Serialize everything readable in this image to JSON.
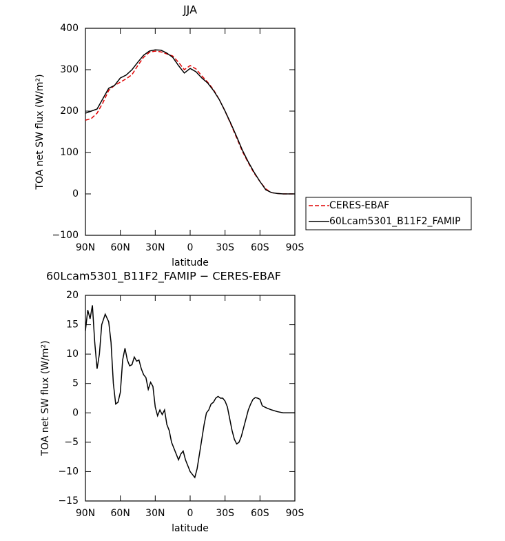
{
  "chart_data": [
    {
      "type": "line",
      "title": "JJA",
      "xlabel": "latitude",
      "ylabel": "TOA net SW flux (W/m²)",
      "x": [
        90,
        85,
        80,
        75,
        70,
        65,
        60,
        55,
        50,
        45,
        40,
        35,
        30,
        25,
        20,
        15,
        10,
        5,
        0,
        -5,
        -10,
        -15,
        -20,
        -25,
        -30,
        -35,
        -40,
        -45,
        -50,
        -55,
        -60,
        -65,
        -70,
        -75,
        -80,
        -85,
        -90
      ],
      "series": [
        {
          "name": "CERES-EBAF",
          "color": "#e00000",
          "linestyle": "dashed",
          "values": [
            178,
            182,
            195,
            220,
            250,
            262,
            270,
            278,
            288,
            310,
            330,
            342,
            345,
            343,
            338,
            333,
            318,
            300,
            310,
            302,
            285,
            270,
            252,
            228,
            200,
            168,
            135,
            102,
            75,
            50,
            30,
            12,
            3,
            1,
            0,
            0,
            0
          ]
        },
        {
          "name": "60Lcam5301_B11F2_FAMIP",
          "color": "#000000",
          "linestyle": "solid",
          "values": [
            195,
            200,
            205,
            230,
            255,
            262,
            280,
            287,
            300,
            318,
            335,
            345,
            348,
            347,
            340,
            330,
            310,
            292,
            303,
            295,
            280,
            268,
            250,
            228,
            200,
            170,
            138,
            105,
            77,
            52,
            30,
            10,
            3,
            1,
            0,
            0,
            0
          ]
        }
      ],
      "xlim": [
        90,
        -90
      ],
      "xticks": [
        {
          "value": 90,
          "label": "90N"
        },
        {
          "value": 60,
          "label": "60N"
        },
        {
          "value": 30,
          "label": "30N"
        },
        0,
        {
          "value": -30,
          "label": "30S"
        },
        {
          "value": -60,
          "label": "60S"
        },
        {
          "value": -90,
          "label": "90S"
        }
      ],
      "ylim": [
        -100,
        400
      ],
      "yticks": [
        {
          "value": -100,
          "label": "−100"
        },
        0,
        100,
        200,
        300,
        400
      ],
      "legend": "outside-right"
    },
    {
      "type": "line",
      "title": "60Lcam5301_B11F2_FAMIP − CERES-EBAF",
      "xlabel": "latitude",
      "ylabel": "TOA net SW flux (W/m²)",
      "x": [
        90,
        88,
        86,
        84,
        82,
        80,
        78,
        76,
        73,
        70,
        68,
        66,
        64,
        62,
        60,
        58,
        56,
        54,
        52,
        50,
        48,
        46,
        44,
        42,
        40,
        38,
        36,
        34,
        32,
        30,
        28,
        26,
        24,
        22,
        20,
        18,
        16,
        14,
        12,
        10,
        8,
        6,
        4,
        2,
        0,
        -2,
        -4,
        -6,
        -8,
        -10,
        -12,
        -14,
        -16,
        -18,
        -20,
        -22,
        -24,
        -26,
        -28,
        -30,
        -32,
        -34,
        -36,
        -38,
        -40,
        -42,
        -44,
        -46,
        -48,
        -50,
        -52,
        -54,
        -56,
        -58,
        -60,
        -62,
        -64,
        -66,
        -70,
        -75,
        -80,
        -85,
        -90
      ],
      "series": [
        {
          "color": "#000000",
          "linestyle": "solid",
          "values": [
            14,
            17.5,
            16,
            18.3,
            12,
            7.5,
            10,
            15,
            16.8,
            15.5,
            12,
            5,
            1.5,
            1.8,
            3.5,
            9,
            11,
            9,
            8,
            8.2,
            9.5,
            8.8,
            9,
            7.5,
            6.5,
            6,
            4,
            5.2,
            4.5,
            1,
            -0.5,
            0.5,
            -0.3,
            0.5,
            -2,
            -3,
            -5,
            -6,
            -7,
            -8,
            -7,
            -6.5,
            -8,
            -9,
            -10,
            -10.5,
            -11,
            -9.5,
            -7,
            -4.5,
            -2,
            0,
            0.5,
            1.5,
            1.8,
            2.5,
            2.8,
            2.5,
            2.5,
            2,
            1,
            -1,
            -3,
            -4.5,
            -5.3,
            -5,
            -4,
            -2.5,
            -1,
            0.5,
            1.5,
            2.3,
            2.6,
            2.5,
            2.3,
            1.2,
            1,
            0.8,
            0.5,
            0.2,
            0,
            0,
            0
          ]
        }
      ],
      "xlim": [
        90,
        -90
      ],
      "xticks": [
        {
          "value": 90,
          "label": "90N"
        },
        {
          "value": 60,
          "label": "60N"
        },
        {
          "value": 30,
          "label": "30N"
        },
        0,
        {
          "value": -30,
          "label": "30S"
        },
        {
          "value": -60,
          "label": "60S"
        },
        {
          "value": -90,
          "label": "90S"
        }
      ],
      "ylim": [
        -15,
        20
      ],
      "yticks": [
        {
          "value": -15,
          "label": "−15"
        },
        {
          "value": -10,
          "label": "−10"
        },
        {
          "value": -5,
          "label": "−5"
        },
        0,
        5,
        10,
        15,
        20
      ]
    }
  ]
}
